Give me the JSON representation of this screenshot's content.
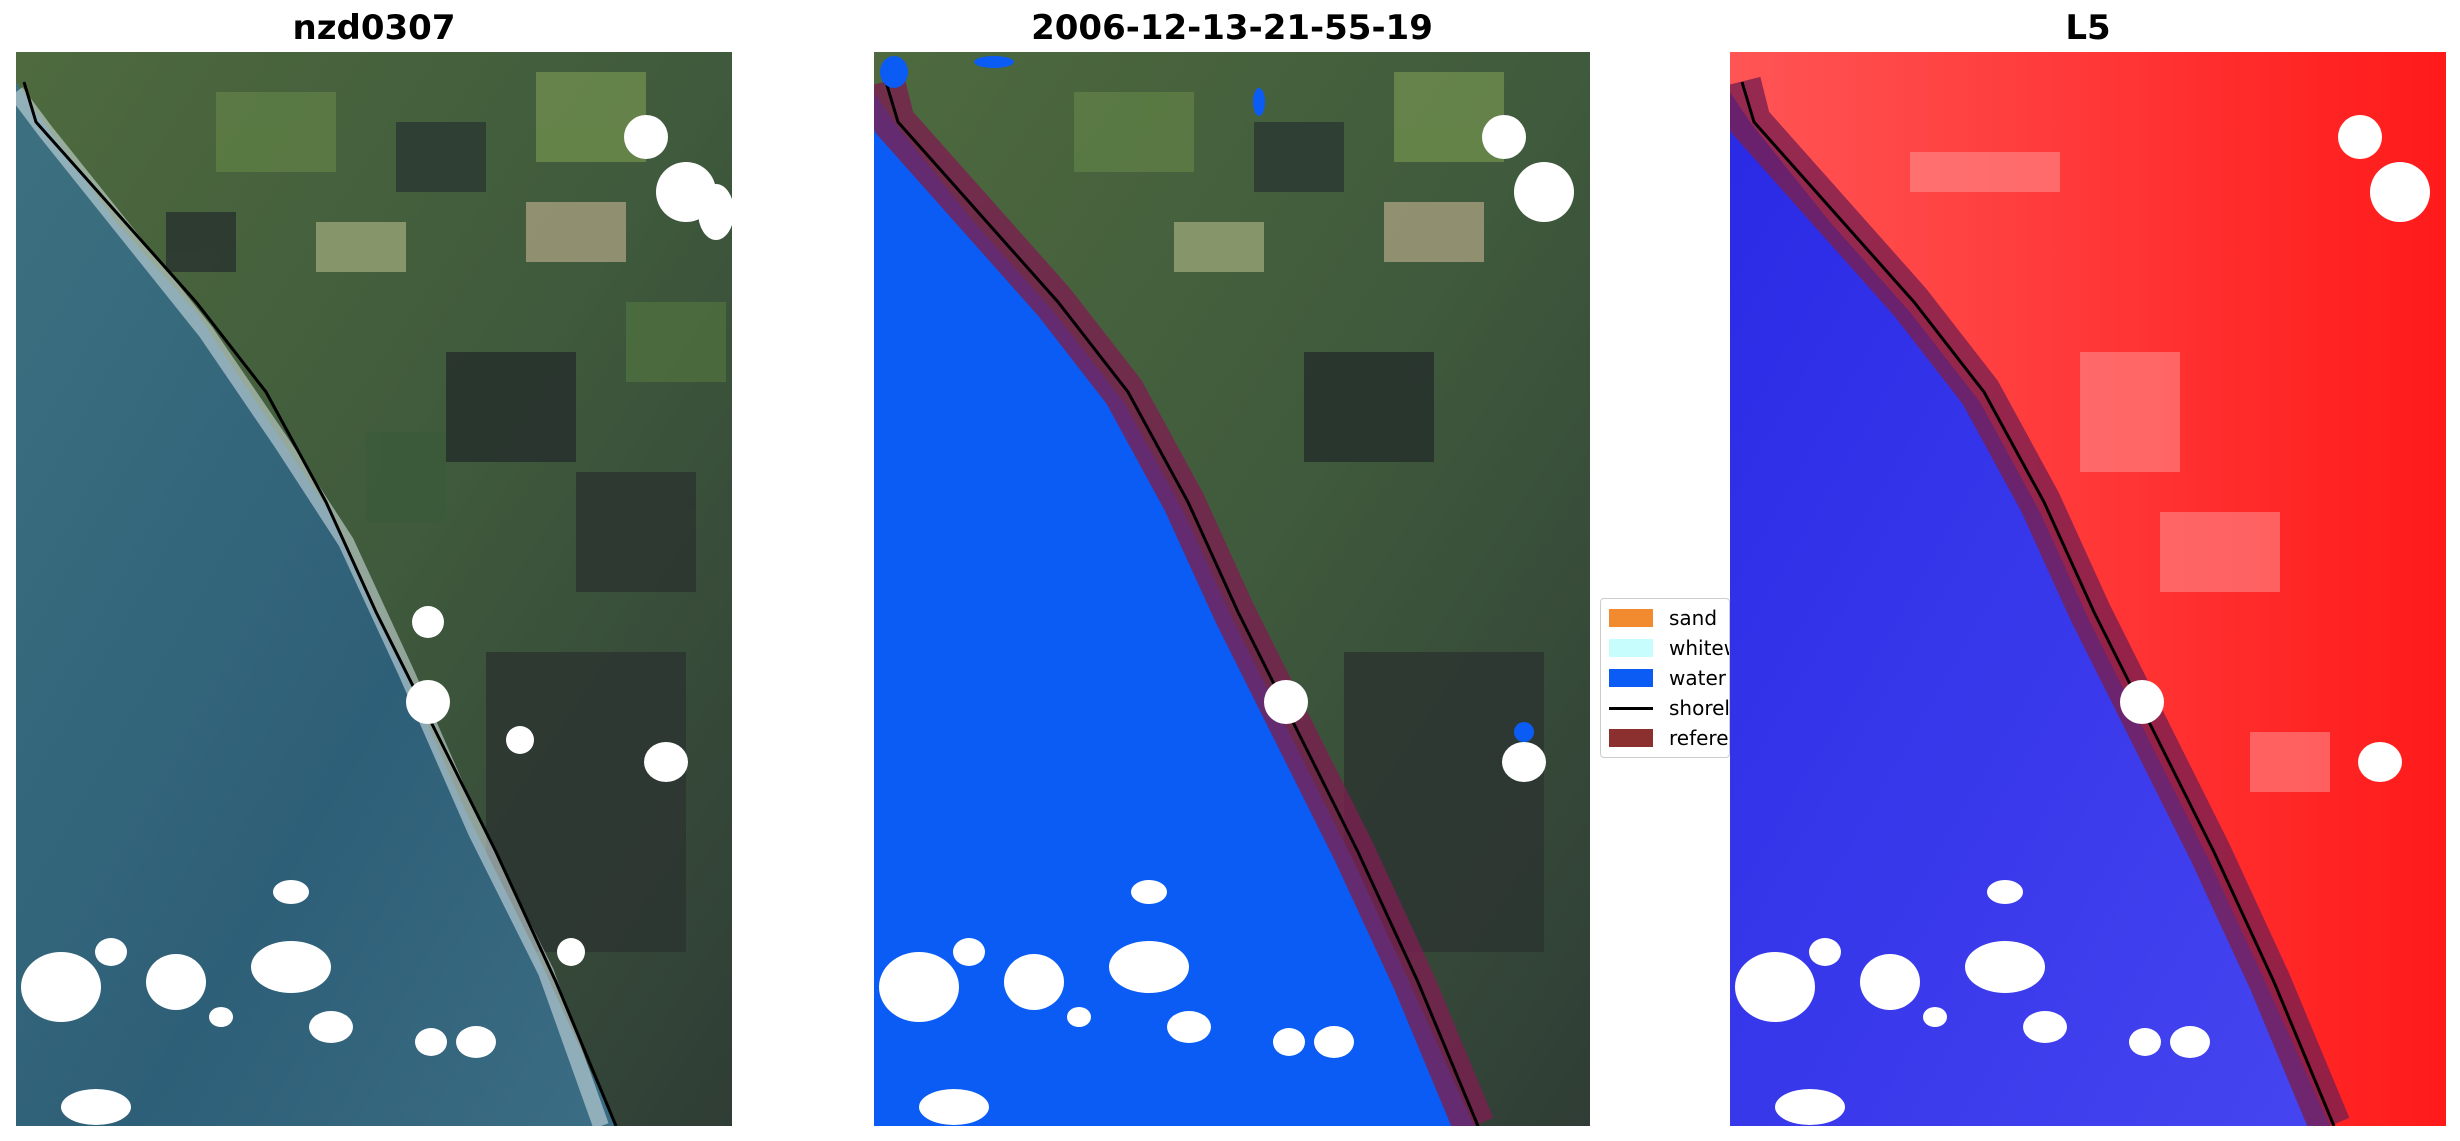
{
  "panels": [
    {
      "title": "nzd0307"
    },
    {
      "title": "2006-12-13-21-55-19"
    },
    {
      "title": "L5"
    }
  ],
  "legend": {
    "items": [
      {
        "label": "sand",
        "color": "#f28a30"
      },
      {
        "label": "whitewater",
        "color": "#c8fdfd"
      },
      {
        "label": "water",
        "color": "#0a5cf5"
      },
      {
        "label": "shoreline",
        "color": "#000000"
      },
      {
        "label": "reference shoreline buffer",
        "color": "#8b2f2f"
      }
    ]
  },
  "colors": {
    "land": "#4a6340",
    "sea": "#2f607a",
    "water_class": "#0a5cf5",
    "buffer": "#7a1f4f",
    "index_red": "#ff2a2a",
    "index_blue": "#2a2ae6",
    "cloud_mask": "#ffffff"
  }
}
